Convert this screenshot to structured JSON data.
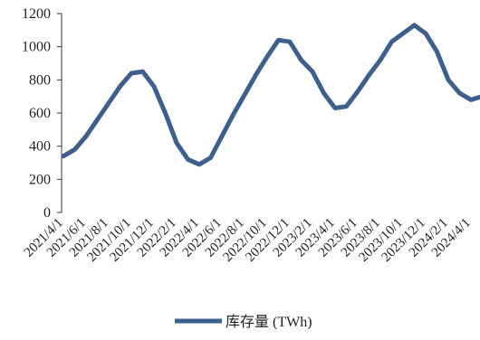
{
  "chart_data": {
    "type": "line",
    "categories": [
      "2021/4/1",
      null,
      "2021/6/1",
      null,
      "2021/8/1",
      null,
      "2021/10/1",
      null,
      "2021/12/1",
      null,
      "2022/2/1",
      null,
      "2022/4/1",
      null,
      "2022/6/1",
      null,
      "2022/8/1",
      null,
      "2022/10/1",
      null,
      "2022/12/1",
      null,
      "2023/2/1",
      null,
      "2023/4/1",
      null,
      "2023/6/1",
      null,
      "2023/8/1",
      null,
      "2023/10/1",
      null,
      "2023/12/1",
      null,
      "2024/2/1",
      null,
      "2024/4/1",
      null
    ],
    "series": [
      {
        "name": "库存量 (TWh)",
        "color": "#3d5f8e",
        "values": [
          340,
          380,
          460,
          560,
          660,
          760,
          840,
          850,
          760,
          600,
          420,
          320,
          290,
          330,
          460,
          590,
          710,
          830,
          940,
          1040,
          1030,
          920,
          850,
          720,
          630,
          640,
          730,
          830,
          920,
          1030,
          1080,
          1130,
          1080,
          970,
          800,
          720,
          680,
          700
        ]
      }
    ],
    "ylim": [
      0,
      1200
    ],
    "yticks": [
      0,
      200,
      400,
      600,
      800,
      1000,
      1200
    ],
    "grid": false,
    "legend": "bottom"
  }
}
